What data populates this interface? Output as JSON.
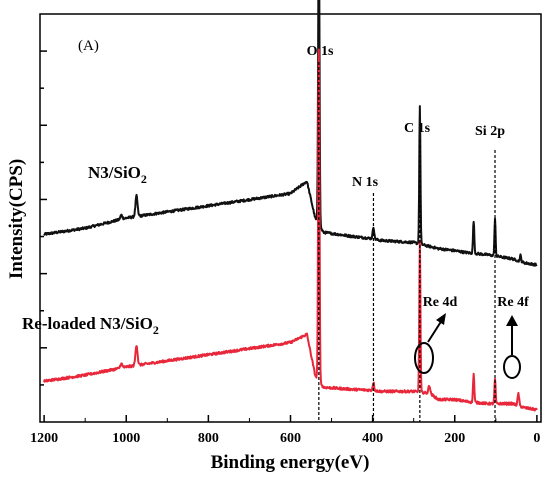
{
  "chart_data": {
    "type": "line",
    "panel_label": "(A)",
    "xlabel": "Binding energy(eV)",
    "ylabel": "Intensity(CPS)",
    "xlim": [
      1210,
      -10
    ],
    "x_ticks": [
      1200,
      1000,
      800,
      600,
      400,
      200,
      0
    ],
    "x_reversed": true,
    "y_tick_labels_shown": false,
    "series": [
      {
        "name": "N3/SiO2",
        "label_main": "N3/SiO",
        "label_sub": "2",
        "color": "#111111",
        "baseline": [
          [
            1200,
            0.46
          ],
          [
            1100,
            0.475
          ],
          [
            1000,
            0.5
          ],
          [
            900,
            0.515
          ],
          [
            800,
            0.53
          ],
          [
            700,
            0.545
          ],
          [
            600,
            0.56
          ],
          [
            560,
            0.59
          ],
          [
            540,
            0.5
          ],
          [
            520,
            0.465
          ],
          [
            450,
            0.455
          ],
          [
            405,
            0.45
          ],
          [
            380,
            0.445
          ],
          [
            300,
            0.44
          ],
          [
            240,
            0.425
          ],
          [
            200,
            0.42
          ],
          [
            170,
            0.415
          ],
          [
            120,
            0.41
          ],
          [
            60,
            0.4
          ],
          [
            30,
            0.39
          ],
          [
            0,
            0.385
          ]
        ],
        "peaks": [
          [
            1012,
            0.01,
            2.5
          ],
          [
            975,
            0.05,
            2.5
          ],
          [
            531,
            0.76,
            1.6
          ],
          [
            398,
            0.03,
            1.8
          ],
          [
            285,
            0.34,
            1.4
          ],
          [
            154,
            0.08,
            1.5
          ],
          [
            102,
            0.09,
            1.4
          ],
          [
            40,
            0.015,
            1.5
          ]
        ]
      },
      {
        "name": "Re-loaded N3/SiO2",
        "label_main": "Re-loaded N3/SiO",
        "label_sub": "2",
        "color": "#e8273a",
        "baseline": [
          [
            1200,
            0.1
          ],
          [
            1100,
            0.115
          ],
          [
            1000,
            0.135
          ],
          [
            900,
            0.15
          ],
          [
            800,
            0.165
          ],
          [
            700,
            0.18
          ],
          [
            600,
            0.195
          ],
          [
            560,
            0.215
          ],
          [
            540,
            0.115
          ],
          [
            520,
            0.085
          ],
          [
            450,
            0.08
          ],
          [
            405,
            0.078
          ],
          [
            380,
            0.075
          ],
          [
            300,
            0.075
          ],
          [
            260,
            0.07
          ],
          [
            240,
            0.055
          ],
          [
            200,
            0.055
          ],
          [
            170,
            0.05
          ],
          [
            120,
            0.045
          ],
          [
            60,
            0.045
          ],
          [
            30,
            0.035
          ],
          [
            0,
            0.03
          ]
        ],
        "peaks": [
          [
            1012,
            0.01,
            2.5
          ],
          [
            975,
            0.05,
            2.5
          ],
          [
            531,
            0.81,
            1.6
          ],
          [
            398,
            0.02,
            1.8
          ],
          [
            285,
            0.37,
            1.4
          ],
          [
            262,
            0.02,
            2.0
          ],
          [
            154,
            0.07,
            1.5
          ],
          [
            102,
            0.06,
            1.4
          ],
          [
            45,
            0.03,
            1.8
          ]
        ]
      }
    ],
    "peak_labels": [
      {
        "text": "O 1s",
        "x": 531
      },
      {
        "text": "N 1s",
        "x": 398
      },
      {
        "text": "C 1s",
        "x": 285
      },
      {
        "text": "Si 2p",
        "x": 102
      }
    ],
    "annotations": [
      {
        "text": "Re 4d",
        "x": 265
      },
      {
        "text": "Re 4f",
        "x": 45
      }
    ]
  }
}
